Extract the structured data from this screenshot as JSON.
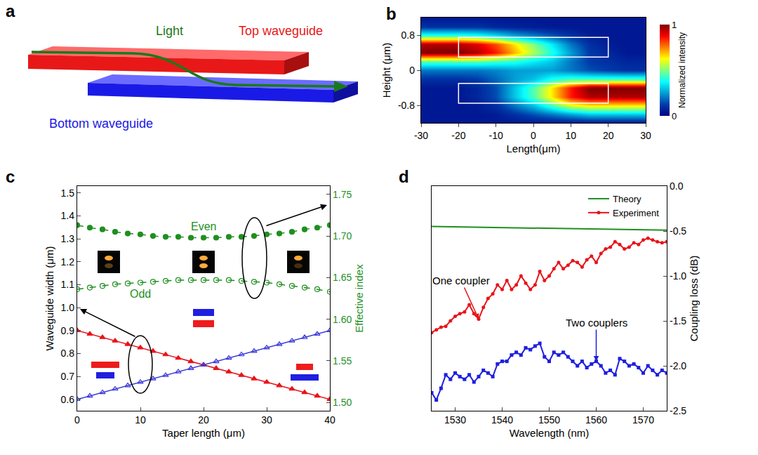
{
  "diagram": {
    "panel": "a",
    "light": "Light",
    "top_waveguide": "Top waveguide",
    "bottom_waveguide": "Bottom waveguide"
  },
  "chart_data": [
    {
      "panel": "b",
      "type": "heatmap",
      "xlabel": "Length(μm)",
      "ylabel": "Height (μm)",
      "x": [
        -30,
        -25,
        -20,
        -15,
        -10,
        -5,
        0,
        5,
        10,
        15,
        20,
        25,
        30
      ],
      "y": [
        -1.2,
        -1.0,
        -0.8,
        -0.6,
        -0.4,
        -0.2,
        0,
        0.2,
        0.4,
        0.6,
        0.8,
        1.0,
        1.2
      ],
      "z": [
        [
          0.05,
          0.05,
          0.05,
          0.05,
          0.05,
          0.05,
          0.05,
          0.05,
          0.05,
          0.05,
          0.05,
          0.05,
          0.05
        ],
        [
          0.05,
          0.05,
          0.05,
          0.05,
          0.06,
          0.1,
          0.15,
          0.2,
          0.25,
          0.3,
          0.3,
          0.3,
          0.3
        ],
        [
          0.05,
          0.05,
          0.05,
          0.06,
          0.1,
          0.2,
          0.3,
          0.45,
          0.6,
          0.65,
          0.65,
          0.65,
          0.65
        ],
        [
          0.05,
          0.05,
          0.05,
          0.08,
          0.15,
          0.3,
          0.45,
          0.65,
          0.85,
          0.95,
          0.95,
          0.95,
          0.95
        ],
        [
          0.05,
          0.05,
          0.05,
          0.08,
          0.15,
          0.3,
          0.45,
          0.65,
          0.85,
          1,
          1,
          1,
          1
        ],
        [
          0.1,
          0.1,
          0.1,
          0.12,
          0.18,
          0.25,
          0.3,
          0.4,
          0.45,
          0.45,
          0.45,
          0.45,
          0.45
        ],
        [
          0.2,
          0.2,
          0.2,
          0.2,
          0.22,
          0.25,
          0.25,
          0.25,
          0.2,
          0.15,
          0.12,
          0.1,
          0.1
        ],
        [
          0.45,
          0.45,
          0.45,
          0.45,
          0.42,
          0.4,
          0.35,
          0.3,
          0.2,
          0.12,
          0.1,
          0.08,
          0.08
        ],
        [
          1,
          1,
          1,
          0.95,
          0.85,
          0.7,
          0.55,
          0.4,
          0.25,
          0.12,
          0.08,
          0.05,
          0.05
        ],
        [
          0.95,
          0.95,
          0.95,
          0.9,
          0.8,
          0.65,
          0.5,
          0.35,
          0.2,
          0.1,
          0.06,
          0.05,
          0.05
        ],
        [
          0.4,
          0.4,
          0.4,
          0.38,
          0.32,
          0.25,
          0.2,
          0.15,
          0.1,
          0.06,
          0.05,
          0.05,
          0.05
        ],
        [
          0.1,
          0.1,
          0.1,
          0.1,
          0.08,
          0.07,
          0.06,
          0.05,
          0.05,
          0.05,
          0.05,
          0.05,
          0.05
        ],
        [
          0.05,
          0.05,
          0.05,
          0.05,
          0.05,
          0.05,
          0.05,
          0.05,
          0.05,
          0.05,
          0.05,
          0.05,
          0.05
        ]
      ],
      "xlim": [
        -30,
        30
      ],
      "xticks": [
        -30,
        -20,
        -10,
        0,
        10,
        20,
        30
      ],
      "ylim": [
        -1.2,
        1.2
      ],
      "yticks": [
        -0.8,
        0,
        0.8
      ],
      "zlim": [
        0,
        1
      ],
      "zticks": [
        0,
        1
      ],
      "colorbar_title": "Normalized intensity",
      "outlines": [
        {
          "x": [
            -20,
            20
          ],
          "y": [
            0.3,
            0.75
          ]
        },
        {
          "x": [
            -20,
            20
          ],
          "y": [
            -0.75,
            -0.3
          ]
        }
      ],
      "grid": false
    },
    {
      "panel": "c",
      "type": "line",
      "xlabel": "Taper length (μm)",
      "ylabel": "Waveguide width (μm)",
      "y2label": "Effective index",
      "x": [
        0,
        2,
        4,
        6,
        8,
        10,
        12,
        14,
        16,
        18,
        20,
        22,
        24,
        26,
        28,
        30,
        32,
        34,
        36,
        38,
        40
      ],
      "xlim": [
        0,
        40
      ],
      "xticks": [
        0,
        10,
        20,
        30,
        40
      ],
      "ylim": [
        0.55,
        1.53
      ],
      "yticks": [
        0.6,
        0.7,
        0.8,
        0.9,
        {
          "value": 1,
          "label": "1.0"
        },
        1.1,
        1.2,
        1.3,
        1.4,
        1.5
      ],
      "y2lim": [
        1.49,
        1.76
      ],
      "y2ticks": [
        {
          "value": 1.5,
          "label": "1.50"
        },
        1.55,
        {
          "value": 1.6,
          "label": "1.60"
        },
        1.65,
        {
          "value": 1.7,
          "label": "1.70"
        },
        1.75
      ],
      "grid": false,
      "series": [
        {
          "color": "#e8141b",
          "marker": "triangle-up",
          "line_style": "solid",
          "values": [
            0.9,
            0.885,
            0.87,
            0.855,
            0.84,
            0.825,
            0.81,
            0.795,
            0.78,
            0.765,
            0.75,
            0.735,
            0.72,
            0.705,
            0.69,
            0.675,
            0.66,
            0.645,
            0.63,
            0.615,
            0.6
          ]
        },
        {
          "color": "#3a3ad8",
          "marker": "triangle-up-open",
          "line_style": "solid",
          "values": [
            0.6,
            0.615,
            0.63,
            0.645,
            0.66,
            0.675,
            0.69,
            0.705,
            0.72,
            0.735,
            0.75,
            0.765,
            0.78,
            0.795,
            0.81,
            0.825,
            0.84,
            0.855,
            0.87,
            0.885,
            0.9
          ]
        },
        {
          "name": "Even",
          "axis": "y2",
          "color": "#1f8f1f",
          "marker": "circle",
          "line_style": "dash",
          "values": [
            1.713,
            1.71,
            1.708,
            1.705,
            1.703,
            1.702,
            1.7,
            1.699,
            1.699,
            1.698,
            1.698,
            1.698,
            1.699,
            1.699,
            1.7,
            1.702,
            1.703,
            1.705,
            1.708,
            1.71,
            1.713
          ]
        },
        {
          "name": "Odd",
          "axis": "y2",
          "color": "#1f8f1f",
          "marker": "circle-open",
          "line_style": "dash",
          "values": [
            1.636,
            1.638,
            1.64,
            1.642,
            1.643,
            1.644,
            1.645,
            1.646,
            1.647,
            1.647,
            1.647,
            1.647,
            1.647,
            1.646,
            1.645,
            1.644,
            1.642,
            1.64,
            1.638,
            1.636,
            1.633
          ]
        }
      ]
    },
    {
      "panel": "d",
      "type": "line",
      "xlabel": "Wavelength (nm)",
      "ylabel": "Coupling loss (dB)",
      "x": [
        1525,
        1526,
        1527,
        1528,
        1529,
        1530,
        1531,
        1532,
        1533,
        1534,
        1535,
        1536,
        1537,
        1538,
        1539,
        1540,
        1541,
        1542,
        1543,
        1544,
        1545,
        1546,
        1547,
        1548,
        1549,
        1550,
        1551,
        1552,
        1553,
        1554,
        1555,
        1556,
        1557,
        1558,
        1559,
        1560,
        1561,
        1562,
        1563,
        1564,
        1565,
        1566,
        1567,
        1568,
        1569,
        1570,
        1571,
        1572,
        1573,
        1574,
        1575
      ],
      "xlim": [
        1525,
        1575
      ],
      "xticks": [
        1530,
        1540,
        1550,
        1560,
        1570
      ],
      "ylim": [
        -2.5,
        0
      ],
      "yticks": [
        -2.5,
        {
          "value": -2,
          "label": "-2.0"
        },
        -1.5,
        {
          "value": -1,
          "label": "-1.0"
        },
        -0.5,
        {
          "value": 0,
          "label": "0.0"
        }
      ],
      "legend": "top right",
      "grid": false,
      "series": [
        {
          "name": "Theory",
          "color": "#1f8f1f",
          "line_style": "solid",
          "x": [
            1525,
            1575
          ],
          "values": [
            -0.45,
            -0.49
          ]
        },
        {
          "name": "Experiment",
          "label": "One coupler",
          "color": "#e8141b",
          "marker": "circle",
          "line_style": "solid",
          "values": [
            -1.63,
            -1.6,
            -1.57,
            -1.56,
            -1.5,
            -1.45,
            -1.42,
            -1.4,
            -1.32,
            -1.42,
            -1.48,
            -1.35,
            -1.25,
            -1.2,
            -1.1,
            -1.15,
            -1.05,
            -1.15,
            -1.1,
            -1.0,
            -1.08,
            -1.15,
            -1.1,
            -0.95,
            -1.05,
            -1.0,
            -0.92,
            -0.85,
            -0.92,
            -0.88,
            -0.83,
            -0.85,
            -0.9,
            -0.82,
            -0.78,
            -0.85,
            -0.75,
            -0.7,
            -0.68,
            -0.62,
            -0.65,
            -0.7,
            -0.68,
            -0.63,
            -0.65,
            -0.6,
            -0.58,
            -0.6,
            -0.62,
            -0.63,
            -0.62
          ]
        },
        {
          "name": "Experiment",
          "label": "Two couplers",
          "color": "#1f1fe0",
          "marker": "square",
          "line_style": "solid",
          "values": [
            -2.3,
            -2.38,
            -2.25,
            -2.1,
            -2.15,
            -2.08,
            -2.12,
            -2.15,
            -2.1,
            -2.18,
            -2.12,
            -2.05,
            -2.08,
            -2.12,
            -1.98,
            -1.95,
            -1.95,
            -1.88,
            -1.85,
            -1.88,
            -1.8,
            -1.82,
            -1.78,
            -1.75,
            -1.9,
            -1.95,
            -1.85,
            -1.88,
            -1.85,
            -1.9,
            -1.95,
            -2.0,
            -1.95,
            -2.02,
            -1.98,
            -1.95,
            -2.0,
            -2.08,
            -2.05,
            -2.1,
            -1.92,
            -1.95,
            -2.0,
            -1.98,
            -2.02,
            -2.08,
            -2.0,
            -2.05,
            -2.1,
            -2.05,
            -2.08
          ]
        }
      ]
    }
  ]
}
